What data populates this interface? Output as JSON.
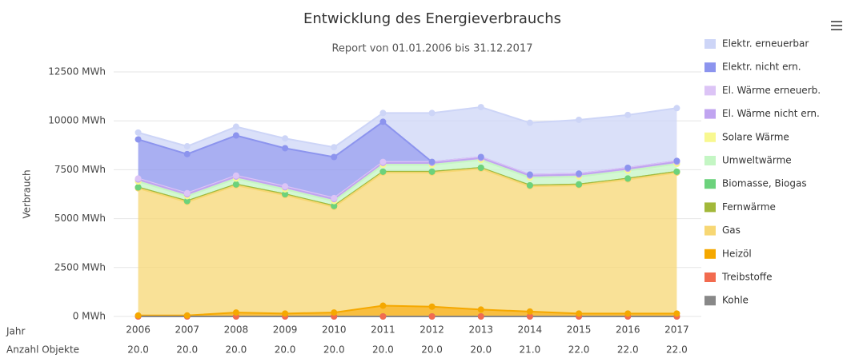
{
  "chart_data": {
    "type": "stacked_area",
    "title": "Entwicklung des Energieverbrauchs",
    "subtitle": "Report von 01.01.2006 bis 31.12.2017",
    "y_label": "Verbrauch",
    "categories": [
      "2006",
      "2007",
      "2008",
      "2009",
      "2010",
      "2011",
      "2012",
      "2013",
      "2014",
      "2015",
      "2016",
      "2017"
    ],
    "row_label": "Jahr",
    "objects": {
      "label": "Anzahl Objekte",
      "values": [
        20,
        20,
        20,
        20,
        20,
        20,
        20,
        20,
        21,
        22,
        22,
        22
      ],
      "value_labels": [
        "20.0",
        "20.0",
        "20.0",
        "20.0",
        "20.0",
        "20.0",
        "20.0",
        "20.0",
        "21.0",
        "22.0",
        "22.0",
        "22.0"
      ]
    },
    "ylim": [
      0,
      12500
    ],
    "yticks": [
      {
        "value": 0,
        "label": "0 MWh"
      },
      {
        "value": 2500,
        "label": "2500 MWh"
      },
      {
        "value": 5000,
        "label": "5000 MWh"
      },
      {
        "value": 7500,
        "label": "7500 MWh"
      },
      {
        "value": 10000,
        "label": "10000 MWh"
      },
      {
        "value": 12500,
        "label": "12500 MWh"
      }
    ],
    "grid": true,
    "legend": "right",
    "series": [
      {
        "name": "Elektr. erneuerbar",
        "color": "#cdd5f7",
        "values": [
          350,
          400,
          450,
          500,
          500,
          450,
          2500,
          2550,
          2650,
          2750,
          2700,
          2700
        ]
      },
      {
        "name": "Elektr. nicht ern.",
        "color": "#8c94ee",
        "values": [
          2000,
          2000,
          2050,
          1950,
          2100,
          2050,
          0,
          0,
          0,
          0,
          0,
          0
        ]
      },
      {
        "name": "El. Wärme erneuerb.",
        "color": "#dcc4f6",
        "values": [
          50,
          50,
          50,
          50,
          50,
          50,
          50,
          50,
          50,
          50,
          50,
          50
        ]
      },
      {
        "name": "El. Wärme nicht ern.",
        "color": "#c0a4f0",
        "values": [
          100,
          100,
          100,
          100,
          100,
          100,
          100,
          100,
          100,
          100,
          100,
          100
        ]
      },
      {
        "name": "Solare Wärme",
        "color": "#f8f890",
        "values": [
          0,
          0,
          0,
          0,
          0,
          0,
          0,
          0,
          0,
          0,
          0,
          0
        ]
      },
      {
        "name": "Umweltwärme",
        "color": "#c4f6c4",
        "values": [
          300,
          250,
          300,
          250,
          250,
          350,
          350,
          400,
          400,
          400,
          400,
          400
        ]
      },
      {
        "name": "Biomasse, Biogas",
        "color": "#6cd27c",
        "values": [
          0,
          0,
          0,
          0,
          0,
          0,
          0,
          0,
          0,
          0,
          0,
          0
        ]
      },
      {
        "name": "Fernwärme",
        "color": "#a2b83a",
        "values": [
          50,
          50,
          50,
          50,
          50,
          50,
          50,
          50,
          50,
          50,
          50,
          50
        ]
      },
      {
        "name": "Gas",
        "color": "#f7d774",
        "values": [
          6500,
          5800,
          6500,
          6050,
          5400,
          6800,
          6850,
          7200,
          6400,
          6550,
          6850,
          7200
        ]
      },
      {
        "name": "Heizöl",
        "color": "#f5a800",
        "values": [
          50,
          50,
          200,
          150,
          200,
          550,
          500,
          350,
          250,
          150,
          150,
          150
        ]
      },
      {
        "name": "Treibstoffe",
        "color": "#f26b4f",
        "values": [
          0,
          0,
          0,
          0,
          0,
          0,
          0,
          0,
          0,
          0,
          0,
          0
        ]
      },
      {
        "name": "Kohle",
        "color": "#888888",
        "values": [
          0,
          0,
          0,
          0,
          0,
          0,
          0,
          0,
          0,
          0,
          0,
          0
        ]
      }
    ]
  }
}
